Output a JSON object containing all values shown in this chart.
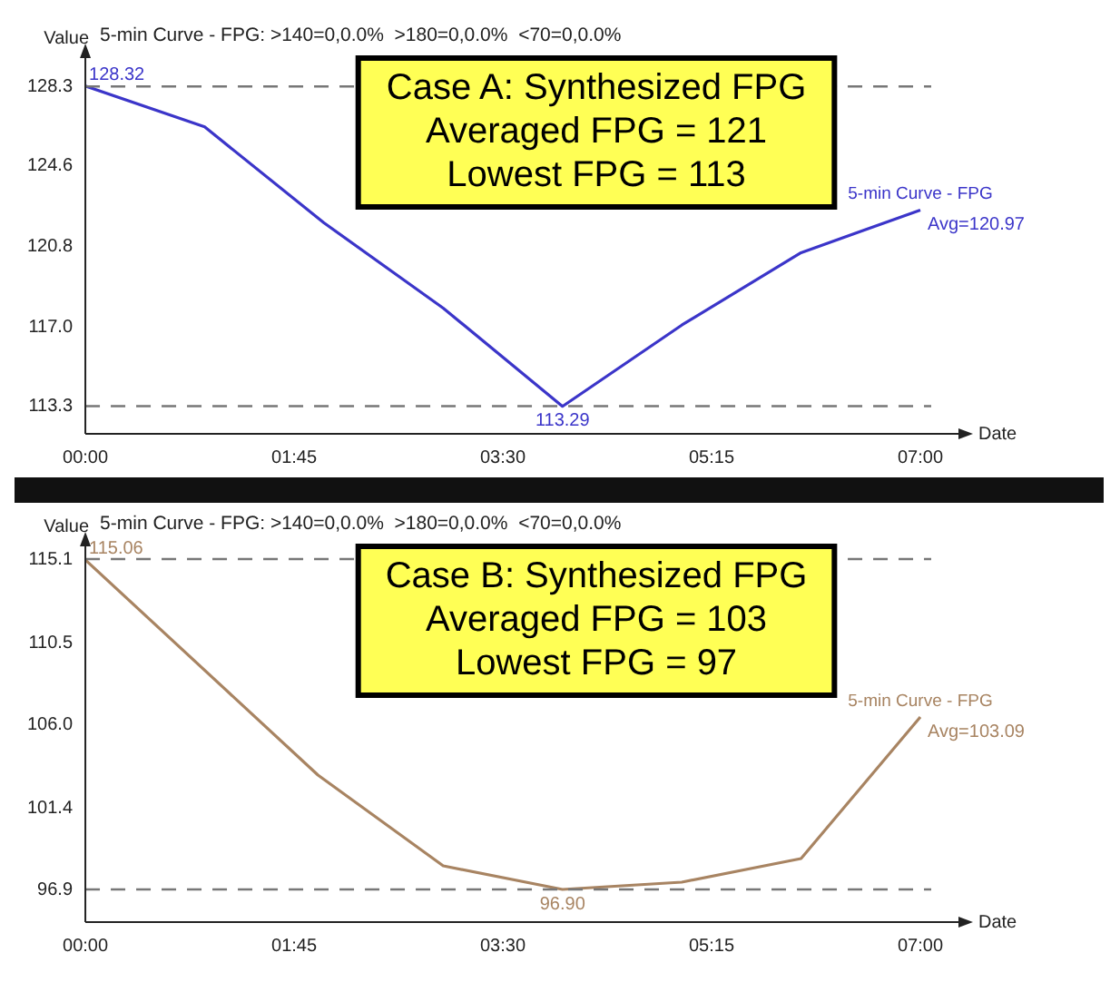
{
  "chart_data": [
    {
      "type": "line",
      "title": "5-min Curve - FPG: >140=0,0.0%  >180=0,0.0%  <70=0,0.0%",
      "xlabel": "Date",
      "ylabel": "Value",
      "x": [
        0,
        1,
        2,
        3,
        4,
        5,
        6,
        7
      ],
      "series": [
        {
          "name": "5-min Curve - FPG",
          "color": "#3b35c9",
          "values": [
            128.32,
            126.4,
            121.9,
            117.9,
            113.29,
            117.1,
            120.5,
            122.5
          ]
        }
      ],
      "xlim": [
        0,
        7.35
      ],
      "xticks": [
        {
          "value": 0,
          "label": "00:00"
        },
        {
          "value": 1.75,
          "label": "01:45"
        },
        {
          "value": 3.5,
          "label": "03:30"
        },
        {
          "value": 5.25,
          "label": "05:15"
        },
        {
          "value": 7,
          "label": "07:00"
        }
      ],
      "ylim": [
        112,
        129.8
      ],
      "yticks": [
        113.3,
        {
          "value": 117,
          "label": "117.0"
        },
        120.8,
        124.6,
        128.3
      ],
      "ref_lines": [
        {
          "axis": "y",
          "value": 128.3,
          "color": "#777777",
          "line_style": "dashed"
        },
        {
          "axis": "y",
          "value": 113.3,
          "color": "#777777",
          "line_style": "dashed"
        }
      ],
      "annotations": [
        "Case A: Synthesized FPG",
        "Averaged FPG = 121",
        "Lowest FPG = 113",
        {
          "text": "128.32",
          "x": 0,
          "y": 128.32
        },
        {
          "text": "113.29",
          "x": 4,
          "y": 113.29
        },
        {
          "text": "Avg=120.97",
          "x": 7,
          "y": 122.5
        }
      ],
      "grid": false,
      "legend": false,
      "marker": "none",
      "line_style": "solid"
    },
    {
      "type": "line",
      "title": "5-min Curve - FPG: >140=0,0.0%  >180=0,0.0%  <70=0,0.0%",
      "xlabel": "Date",
      "ylabel": "Value",
      "x": [
        0,
        1.95,
        3,
        4,
        5,
        6,
        7
      ],
      "series": [
        {
          "name": "5-min Curve - FPG",
          "color": "#a88462",
          "values": [
            115.06,
            103.2,
            98.2,
            96.9,
            97.3,
            98.6,
            106.4
          ]
        }
      ],
      "xlim": [
        0,
        7.35
      ],
      "xticks": [
        {
          "value": 0,
          "label": "00:00"
        },
        {
          "value": 1.75,
          "label": "01:45"
        },
        {
          "value": 3.5,
          "label": "03:30"
        },
        {
          "value": 5.25,
          "label": "05:15"
        },
        {
          "value": 7,
          "label": "07:00"
        }
      ],
      "ylim": [
        95.1,
        116
      ],
      "yticks": [
        96.9,
        101.4,
        {
          "value": 106,
          "label": "106.0"
        },
        110.5,
        115.1
      ],
      "ref_lines": [
        {
          "axis": "y",
          "value": 115.1,
          "color": "#777777",
          "line_style": "dashed"
        },
        {
          "axis": "y",
          "value": 96.9,
          "color": "#777777",
          "line_style": "dashed"
        }
      ],
      "annotations": [
        "Case B: Synthesized FPG",
        "Averaged FPG = 103",
        "Lowest FPG = 97",
        {
          "text": "115.06",
          "x": 0,
          "y": 115.06
        },
        {
          "text": "96.90",
          "x": 4,
          "y": 96.9
        },
        {
          "text": "Avg=103.09",
          "x": 7,
          "y": 106.4
        }
      ],
      "grid": false,
      "legend": false,
      "marker": "none",
      "line_style": "solid"
    }
  ]
}
